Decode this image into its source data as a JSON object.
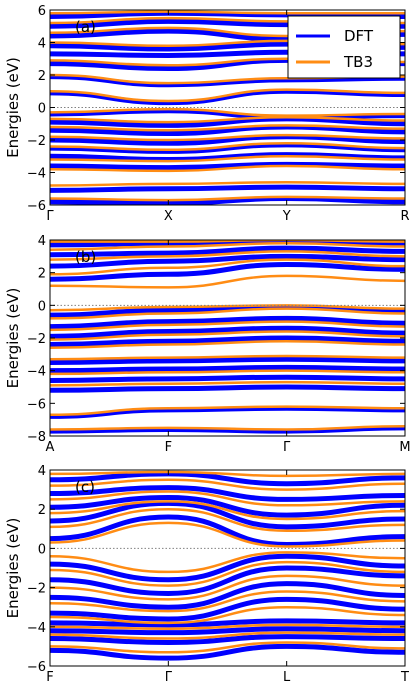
{
  "colors": {
    "dft": "#0000ff",
    "tb3": "#ff8c14",
    "zero_line": "#808080"
  },
  "chart_data": [
    {
      "type": "line",
      "panel_label": "(a)",
      "ylabel": "Energies (eV)",
      "ylim": [
        -6,
        6
      ],
      "y_ticks": [
        -6,
        -4,
        -2,
        0,
        2,
        4,
        6
      ],
      "x_ticks": [
        "Γ",
        "X",
        "Y",
        "R"
      ],
      "x_tick_positions": [
        0,
        1,
        2,
        3
      ],
      "legend": {
        "placement": "top-right",
        "entries": [
          "DFT",
          "TB3"
        ]
      },
      "reference_line": 0,
      "series": [
        {
          "name": "DFT",
          "bands": [
            [
              -5.8,
              -5.9,
              -5.6,
              -5.8
            ],
            [
              -5.1,
              -5.0,
              -4.9,
              -5.0
            ],
            [
              -3.6,
              -3.7,
              -3.5,
              -3.6
            ],
            [
              -3.0,
              -3.2,
              -2.9,
              -3.1
            ],
            [
              -2.5,
              -2.7,
              -2.3,
              -2.6
            ],
            [
              -2.0,
              -2.2,
              -1.8,
              -2.1
            ],
            [
              -1.4,
              -1.6,
              -1.2,
              -1.5
            ],
            [
              -0.9,
              -1.1,
              -0.7,
              -1.0
            ],
            [
              -0.4,
              -0.2,
              -0.6,
              -0.5
            ],
            [
              0.9,
              0.3,
              1.0,
              0.8
            ],
            [
              1.9,
              1.4,
              1.7,
              1.8
            ],
            [
              2.7,
              2.4,
              2.9,
              2.7
            ],
            [
              3.3,
              3.2,
              3.4,
              3.3
            ],
            [
              3.8,
              3.6,
              3.9,
              3.7
            ],
            [
              4.4,
              4.7,
              4.2,
              4.5
            ],
            [
              5.0,
              5.3,
              5.1,
              5.0
            ],
            [
              5.6,
              5.8,
              5.7,
              5.6
            ]
          ]
        },
        {
          "name": "TB3",
          "bands": [
            [
              -5.6,
              -5.7,
              -5.5,
              -5.6
            ],
            [
              -4.8,
              -4.7,
              -4.6,
              -4.7
            ],
            [
              -3.8,
              -3.9,
              -3.6,
              -3.8
            ],
            [
              -3.2,
              -3.3,
              -3.0,
              -3.2
            ],
            [
              -2.4,
              -2.6,
              -2.2,
              -2.5
            ],
            [
              -1.8,
              -2.0,
              -1.7,
              -1.9
            ],
            [
              -1.2,
              -1.4,
              -1.1,
              -1.3
            ],
            [
              -0.7,
              -0.9,
              -0.6,
              -0.8
            ],
            [
              -0.3,
              -0.1,
              -0.5,
              -0.4
            ],
            [
              1.0,
              0.4,
              1.1,
              0.9
            ],
            [
              2.0,
              1.5,
              1.8,
              1.9
            ],
            [
              2.9,
              2.6,
              3.0,
              2.8
            ],
            [
              4.0,
              3.8,
              4.1,
              3.9
            ],
            [
              4.6,
              4.9,
              4.4,
              4.7
            ],
            [
              5.2,
              5.5,
              5.3,
              5.2
            ],
            [
              5.8,
              5.9,
              5.8,
              5.8
            ]
          ]
        }
      ]
    },
    {
      "type": "line",
      "panel_label": "(b)",
      "ylabel": "Energies (eV)",
      "ylim": [
        -8,
        4
      ],
      "y_ticks": [
        -8,
        -6,
        -4,
        -2,
        0,
        2,
        4
      ],
      "x_ticks": [
        "A",
        "F",
        "Γ",
        "M"
      ],
      "x_tick_positions": [
        0,
        1,
        2,
        3
      ],
      "reference_line": 0,
      "series": [
        {
          "name": "DFT",
          "bands": [
            [
              -7.7,
              -7.6,
              -7.7,
              -7.5
            ],
            [
              -6.8,
              -6.4,
              -6.3,
              -6.4
            ],
            [
              -5.2,
              -5.1,
              -5.0,
              -5.1
            ],
            [
              -4.6,
              -4.5,
              -4.4,
              -4.5
            ],
            [
              -4.0,
              -3.9,
              -3.8,
              -3.9
            ],
            [
              -3.5,
              -3.4,
              -3.3,
              -3.4
            ],
            [
              -2.4,
              -2.2,
              -2.0,
              -2.2
            ],
            [
              -1.9,
              -1.6,
              -1.4,
              -1.7
            ],
            [
              -1.3,
              -1.0,
              -0.8,
              -1.1
            ],
            [
              -0.6,
              -0.3,
              -0.1,
              -0.4
            ],
            [
              1.6,
              1.9,
              2.5,
              2.2
            ],
            [
              2.4,
              2.7,
              3.0,
              2.8
            ],
            [
              3.1,
              3.2,
              3.5,
              3.3
            ],
            [
              3.7,
              3.8,
              3.9,
              3.7
            ]
          ]
        },
        {
          "name": "TB3",
          "bands": [
            [
              -7.6,
              -7.5,
              -7.6,
              -7.4
            ],
            [
              -6.7,
              -6.3,
              -6.2,
              -6.3
            ],
            [
              -4.9,
              -4.8,
              -4.7,
              -4.8
            ],
            [
              -4.2,
              -4.1,
              -4.0,
              -4.1
            ],
            [
              -3.3,
              -3.2,
              -3.1,
              -3.2
            ],
            [
              -2.6,
              -2.4,
              -2.2,
              -2.4
            ],
            [
              -2.1,
              -1.8,
              -1.6,
              -1.9
            ],
            [
              -1.5,
              -1.2,
              -1.0,
              -1.3
            ],
            [
              -0.8,
              -0.5,
              -0.2,
              -0.5
            ],
            [
              -0.3,
              -0.1,
              0.0,
              -0.2
            ],
            [
              1.2,
              1.1,
              1.8,
              1.5
            ],
            [
              1.9,
              2.3,
              2.8,
              2.4
            ],
            [
              2.8,
              3.0,
              3.3,
              3.0
            ],
            [
              3.4,
              3.6,
              3.8,
              3.6
            ],
            [
              3.9,
              3.9,
              4.0,
              3.9
            ]
          ]
        }
      ]
    },
    {
      "type": "line",
      "panel_label": "(c)",
      "ylabel": "Energies (eV)",
      "ylim": [
        -6,
        4
      ],
      "y_ticks": [
        -6,
        -4,
        -2,
        0,
        2,
        4
      ],
      "x_ticks": [
        "F",
        "Γ",
        "L",
        "T"
      ],
      "x_tick_positions": [
        0,
        1,
        2,
        3
      ],
      "reference_line": 0,
      "series": [
        {
          "name": "DFT",
          "bands": [
            [
              -5.2,
              -5.6,
              -5.0,
              -5.3
            ],
            [
              -4.6,
              -4.8,
              -4.5,
              -4.6
            ],
            [
              -4.2,
              -4.3,
              -4.1,
              -4.2
            ],
            [
              -3.8,
              -3.9,
              -3.7,
              -3.8
            ],
            [
              -3.3,
              -3.6,
              -2.6,
              -3.1
            ],
            [
              -2.5,
              -3.0,
              -1.8,
              -2.4
            ],
            [
              -1.6,
              -2.3,
              -1.0,
              -1.4
            ],
            [
              -0.8,
              -1.6,
              -0.4,
              -0.9
            ],
            [
              0.5,
              1.6,
              0.2,
              0.6
            ],
            [
              1.4,
              2.3,
              1.1,
              1.5
            ],
            [
              2.1,
              2.6,
              1.7,
              2.2
            ],
            [
              2.8,
              3.1,
              2.5,
              2.7
            ],
            [
              3.5,
              3.8,
              3.3,
              3.6
            ]
          ]
        },
        {
          "name": "TB3",
          "bands": [
            [
              -5.0,
              -5.3,
              -4.8,
              -5.1
            ],
            [
              -4.4,
              -4.6,
              -4.3,
              -4.4
            ],
            [
              -4.0,
              -4.1,
              -3.9,
              -4.0
            ],
            [
              -3.5,
              -3.8,
              -3.0,
              -3.4
            ],
            [
              -2.8,
              -3.2,
              -2.2,
              -2.7
            ],
            [
              -2.0,
              -2.6,
              -1.4,
              -1.9
            ],
            [
              -1.1,
              -1.9,
              -0.7,
              -1.2
            ],
            [
              -0.4,
              -1.2,
              -0.2,
              -0.5
            ],
            [
              0.3,
              1.3,
              0.1,
              0.4
            ],
            [
              1.1,
              2.0,
              0.9,
              1.2
            ],
            [
              1.8,
              2.4,
              1.5,
              1.9
            ],
            [
              2.5,
              2.9,
              2.2,
              2.4
            ],
            [
              3.2,
              3.5,
              3.0,
              3.3
            ],
            [
              3.8,
              3.9,
              3.7,
              3.8
            ]
          ]
        }
      ]
    }
  ]
}
